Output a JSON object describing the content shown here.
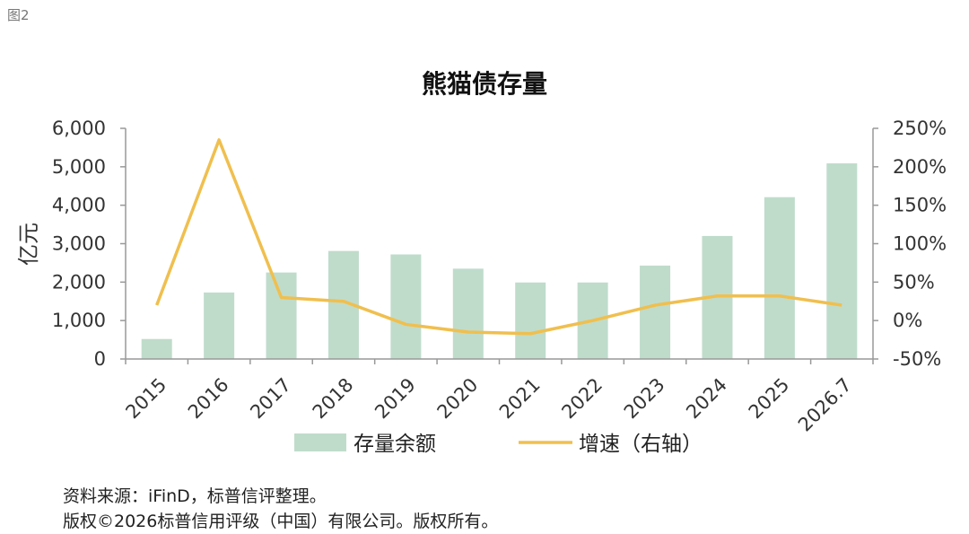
{
  "figure_label": "图2",
  "chart_data": {
    "type": "bar",
    "title": "熊猫债存量",
    "categories": [
      "2015",
      "2016",
      "2017",
      "2018",
      "2019",
      "2020",
      "2021",
      "2022",
      "2023",
      "2024",
      "2025",
      "2026.7"
    ],
    "series": [
      {
        "name": "存量余额",
        "type": "bar",
        "axis": "left",
        "color": "#bfdccb",
        "values": [
          520,
          1730,
          2250,
          2810,
          2720,
          2350,
          1990,
          1990,
          2430,
          3200,
          4210,
          5090
        ]
      },
      {
        "name": "增速（右轴）",
        "type": "line",
        "axis": "right",
        "color": "#f0bf4e",
        "values": [
          20,
          235,
          30,
          25,
          -5,
          -15,
          -17,
          0,
          20,
          32,
          32,
          20
        ]
      }
    ],
    "ylabel": "亿元",
    "ylim": [
      0,
      6000
    ],
    "yticks": [
      "0",
      "1,000",
      "2,000",
      "3,000",
      "4,000",
      "5,000",
      "6,000"
    ],
    "y2lim": [
      -50,
      250
    ],
    "y2ticks": [
      "-50%",
      "0%",
      "50%",
      "100%",
      "150%",
      "200%",
      "250%"
    ],
    "legend_position": "bottom"
  },
  "source_lines": [
    "资料来源：iFinD，标普信评整理。",
    "版权©2026标普信用评级（中国）有限公司。版权所有。"
  ]
}
